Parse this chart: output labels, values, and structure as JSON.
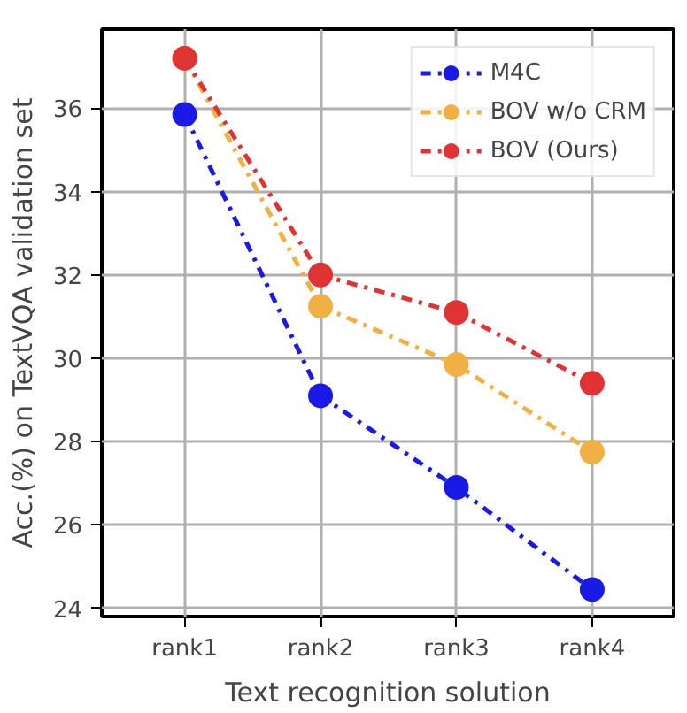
{
  "chart_data": {
    "type": "line",
    "xlabel": "Text recognition solution",
    "ylabel": "Acc.(%) on TextVQA validation set",
    "categories": [
      "rank1",
      "rank2",
      "rank3",
      "rank4"
    ],
    "series": [
      {
        "name": "M4C",
        "color": "#1a1ae6",
        "values": [
          35.85,
          29.1,
          26.9,
          24.45
        ]
      },
      {
        "name": "BOV w/o CRM",
        "color": "#f0b043",
        "values": [
          37.2,
          31.25,
          29.85,
          27.75
        ]
      },
      {
        "name": "BOV (Ours)",
        "color": "#e03333",
        "values": [
          37.2,
          32.0,
          31.1,
          29.4
        ]
      }
    ],
    "ylim": [
      23.8,
      37.9
    ],
    "yticks": [
      24,
      26,
      28,
      30,
      32,
      34,
      36
    ],
    "grid": true,
    "legend": "top right",
    "marker": "circle",
    "line_style": "dashdot"
  }
}
